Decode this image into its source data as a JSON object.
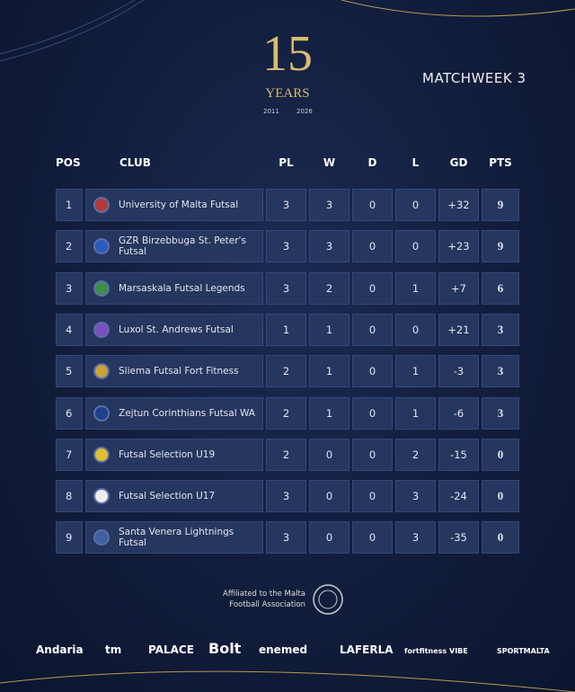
{
  "header": {
    "logo": {
      "number": "15",
      "word": "YEARS",
      "start_year": "2011",
      "end_year": "2026"
    },
    "matchweek": "MATCHWEEK 3"
  },
  "table": {
    "columns": [
      "POS",
      "CLUB",
      "PL",
      "W",
      "D",
      "L",
      "GD",
      "PTS"
    ],
    "rows": [
      [
        "1",
        "University of Malta Futsal",
        "3",
        "3",
        "0",
        "0",
        "+32",
        "9"
      ],
      [
        "2",
        "GZR Birzebbuga St. Peter's Futsal",
        "3",
        "3",
        "0",
        "0",
        "+23",
        "9"
      ],
      [
        "3",
        "Marsaskala Futsal Legends",
        "3",
        "2",
        "0",
        "1",
        "+7",
        "6"
      ],
      [
        "4",
        "Luxol St. Andrews Futsal",
        "1",
        "1",
        "0",
        "0",
        "+21",
        "3"
      ],
      [
        "5",
        "Sliema Futsal Fort Fitness",
        "2",
        "1",
        "0",
        "1",
        "-3",
        "3"
      ],
      [
        "6",
        "Zejtun Corinthians Futsal WA",
        "2",
        "1",
        "0",
        "1",
        "-6",
        "3"
      ],
      [
        "7",
        "Futsal Selection U19",
        "2",
        "0",
        "0",
        "2",
        "-15",
        "0"
      ],
      [
        "8",
        "Futsal Selection U17",
        "3",
        "0",
        "0",
        "3",
        "-24",
        "0"
      ],
      [
        "9",
        "Santa Venera Lightnings Futsal",
        "3",
        "0",
        "0",
        "3",
        "-35",
        "0"
      ]
    ]
  },
  "footer": {
    "affiliation": [
      "Affiliated to the Malta",
      "Football Association"
    ],
    "sponsors": [
      "Andaria",
      "tm",
      "PALACE",
      "Bolt",
      "enemed",
      "LAFERLA",
      "fortfitness",
      "VIBE",
      "SPORTMALTA"
    ]
  }
}
